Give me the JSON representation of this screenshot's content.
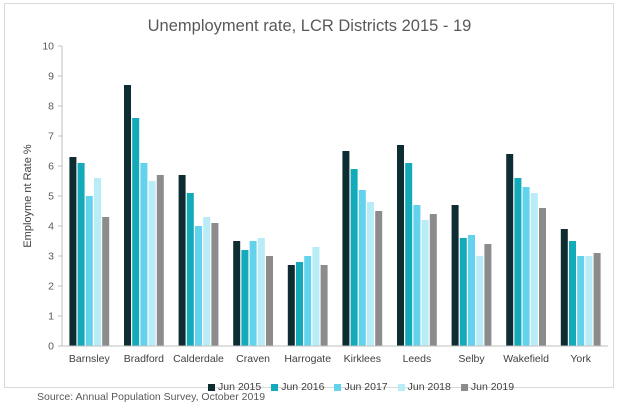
{
  "chart_data": {
    "type": "bar",
    "title": "Unemployment rate, LCR Districts 2015 - 19",
    "xlabel": "",
    "ylabel": "Employme nt Rate %",
    "ylim": [
      0,
      10
    ],
    "yticks": [
      "0",
      "1",
      "2",
      "3",
      "4",
      "5",
      "6",
      "7",
      "8",
      "9",
      "10"
    ],
    "grid": false,
    "legend_position": "bottom",
    "categories": [
      "Barnsley",
      "Bradford",
      "Calderdale",
      "Craven",
      "Harrogate",
      "Kirklees",
      "Leeds",
      "Selby",
      "Wakefield",
      "York"
    ],
    "series": [
      {
        "name": "Jun 2015",
        "color": "#0d2d33",
        "values": [
          6.3,
          8.7,
          5.7,
          3.5,
          2.7,
          6.5,
          6.7,
          4.7,
          6.4,
          3.9
        ]
      },
      {
        "name": "Jun 2016",
        "color": "#13aab9",
        "values": [
          6.1,
          7.6,
          5.1,
          3.2,
          2.8,
          5.9,
          6.1,
          3.6,
          5.6,
          3.5
        ]
      },
      {
        "name": "Jun 2017",
        "color": "#63d2ec",
        "values": [
          5.0,
          6.1,
          4.0,
          3.5,
          3.0,
          5.2,
          4.7,
          3.7,
          5.3,
          3.0
        ]
      },
      {
        "name": "Jun 2018",
        "color": "#b8ecf6",
        "values": [
          5.6,
          5.5,
          4.3,
          3.6,
          3.3,
          4.8,
          4.2,
          3.0,
          5.1,
          3.0
        ]
      },
      {
        "name": "Jun 2019",
        "color": "#8c8c8c",
        "values": [
          4.3,
          5.7,
          4.1,
          3.0,
          2.7,
          4.5,
          4.4,
          3.4,
          4.6,
          3.1
        ]
      }
    ],
    "source": "Source: Annual Population Survey, October 2019"
  }
}
